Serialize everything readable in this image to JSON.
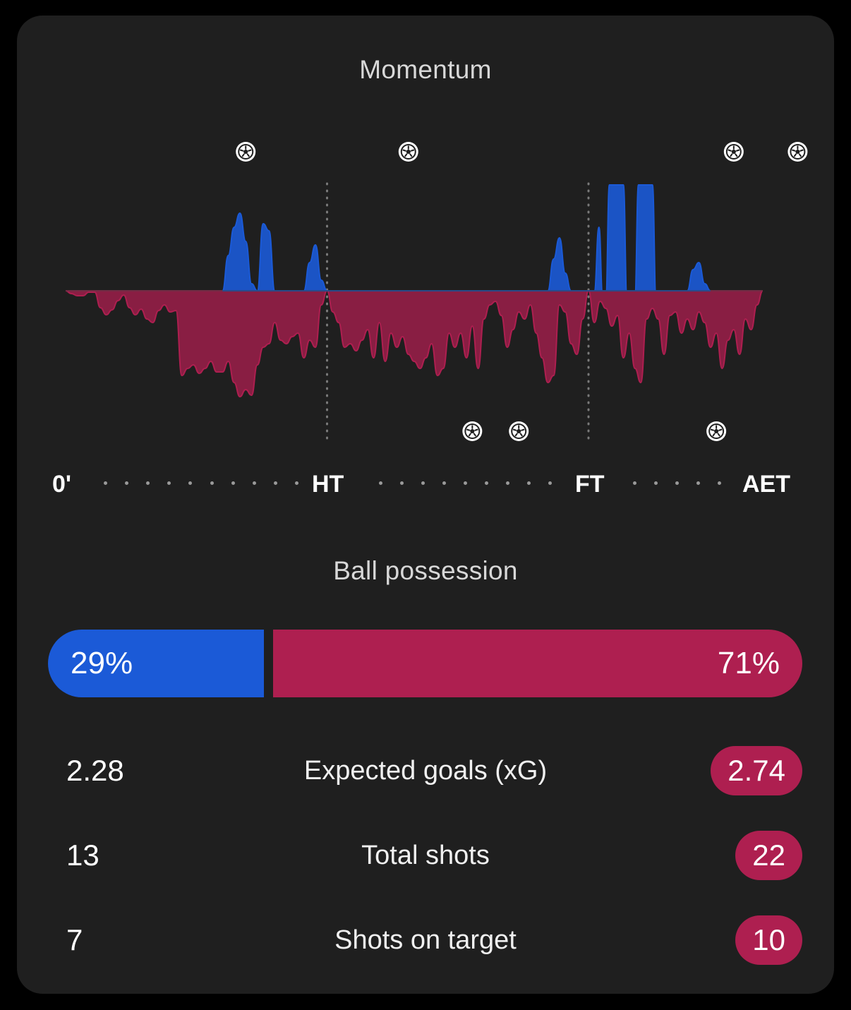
{
  "momentum": {
    "title": "Momentum",
    "timeline_labels": [
      "0'",
      "HT",
      "FT",
      "AET"
    ],
    "home_color": "#1b5ad7",
    "away_color": "#ae1f50",
    "home_goal_minutes": [
      31,
      59,
      115,
      126
    ],
    "away_goal_minutes": [
      70,
      78,
      112
    ],
    "goal_icon": "soccer-ball-icon",
    "periods": {
      "half_time": 45,
      "full_time": 90,
      "extra_time_end": 120
    },
    "series": [
      [
        0,
        0
      ],
      [
        1,
        -4
      ],
      [
        2,
        -7
      ],
      [
        3,
        -7
      ],
      [
        4,
        -2
      ],
      [
        5,
        -2
      ],
      [
        6,
        -24
      ],
      [
        7,
        -34
      ],
      [
        8,
        -27
      ],
      [
        9,
        -14
      ],
      [
        10,
        -6
      ],
      [
        11,
        -24
      ],
      [
        12,
        -34
      ],
      [
        13,
        -26
      ],
      [
        14,
        -40
      ],
      [
        15,
        -45
      ],
      [
        16,
        -28
      ],
      [
        17,
        -20
      ],
      [
        18,
        -30
      ],
      [
        19,
        -28
      ],
      [
        20,
        -120
      ],
      [
        21,
        -110
      ],
      [
        22,
        -105
      ],
      [
        23,
        -117
      ],
      [
        24,
        -110
      ],
      [
        25,
        -100
      ],
      [
        26,
        -115
      ],
      [
        27,
        -115
      ],
      [
        28,
        -100
      ],
      [
        29,
        -130
      ],
      [
        30,
        -150
      ],
      [
        31,
        -140
      ],
      [
        32,
        -148
      ],
      [
        33,
        -105
      ],
      [
        34,
        -80
      ],
      [
        35,
        -75
      ],
      [
        36,
        -45
      ],
      [
        37,
        -70
      ],
      [
        38,
        -75
      ],
      [
        39,
        -65
      ],
      [
        40,
        -60
      ],
      [
        41,
        -95
      ],
      [
        42,
        -70
      ],
      [
        43,
        -80
      ],
      [
        44,
        -20
      ],
      [
        45,
        0
      ],
      [
        46,
        -30
      ],
      [
        47,
        -45
      ],
      [
        48,
        -80
      ],
      [
        49,
        -75
      ],
      [
        50,
        -85
      ],
      [
        51,
        -70
      ],
      [
        52,
        -55
      ],
      [
        53,
        -95
      ],
      [
        54,
        -45
      ],
      [
        55,
        -100
      ],
      [
        56,
        -60
      ],
      [
        57,
        -80
      ],
      [
        58,
        -65
      ],
      [
        59,
        -90
      ],
      [
        60,
        -100
      ],
      [
        61,
        -110
      ],
      [
        62,
        -95
      ],
      [
        63,
        -75
      ],
      [
        64,
        -120
      ],
      [
        65,
        -110
      ],
      [
        66,
        -60
      ],
      [
        67,
        -80
      ],
      [
        68,
        -60
      ],
      [
        69,
        -95
      ],
      [
        70,
        -50
      ],
      [
        71,
        -110
      ],
      [
        72,
        -40
      ],
      [
        73,
        -20
      ],
      [
        74,
        -15
      ],
      [
        75,
        -35
      ],
      [
        76,
        -80
      ],
      [
        77,
        -55
      ],
      [
        78,
        -30
      ],
      [
        79,
        -40
      ],
      [
        80,
        -20
      ],
      [
        81,
        -60
      ],
      [
        82,
        -95
      ],
      [
        83,
        -130
      ],
      [
        84,
        -120
      ],
      [
        85,
        -20
      ],
      [
        86,
        -30
      ],
      [
        87,
        -75
      ],
      [
        88,
        -90
      ],
      [
        89,
        -40
      ],
      [
        90,
        0
      ],
      [
        91,
        -45
      ],
      [
        92,
        -15
      ],
      [
        93,
        -25
      ],
      [
        94,
        -50
      ],
      [
        95,
        -35
      ],
      [
        96,
        -95
      ],
      [
        97,
        -60
      ],
      [
        98,
        -110
      ],
      [
        99,
        -130
      ],
      [
        100,
        -40
      ],
      [
        101,
        -25
      ],
      [
        102,
        -40
      ],
      [
        103,
        -90
      ],
      [
        104,
        -35
      ],
      [
        105,
        -30
      ],
      [
        106,
        -60
      ],
      [
        107,
        -40
      ],
      [
        108,
        -55
      ],
      [
        109,
        -30
      ],
      [
        110,
        -45
      ],
      [
        111,
        -80
      ],
      [
        112,
        -60
      ],
      [
        113,
        -110
      ],
      [
        114,
        -70
      ],
      [
        115,
        -55
      ],
      [
        116,
        -90
      ],
      [
        117,
        -40
      ],
      [
        118,
        -55
      ],
      [
        119,
        -20
      ],
      [
        120,
        0
      ]
    ],
    "home_peaks": [
      [
        27,
        0
      ],
      [
        28,
        50
      ],
      [
        29,
        90
      ],
      [
        30,
        110
      ],
      [
        31,
        70
      ],
      [
        32,
        10
      ],
      [
        33,
        0
      ],
      [
        34,
        95
      ],
      [
        35,
        85
      ],
      [
        36,
        0
      ],
      [
        41,
        0
      ],
      [
        42,
        40
      ],
      [
        43,
        65
      ],
      [
        44,
        15
      ],
      [
        45,
        0
      ],
      [
        83,
        0
      ],
      [
        84,
        45
      ],
      [
        85,
        75
      ],
      [
        86,
        25
      ],
      [
        87,
        0
      ],
      [
        91,
        0
      ],
      [
        91.8,
        90
      ],
      [
        92.4,
        0
      ],
      [
        93,
        0
      ],
      [
        93.6,
        150
      ],
      [
        96,
        150
      ],
      [
        96.6,
        0
      ],
      [
        98,
        0
      ],
      [
        98.6,
        150
      ],
      [
        101,
        150
      ],
      [
        101.6,
        0
      ],
      [
        107,
        0
      ],
      [
        108,
        30
      ],
      [
        109,
        40
      ],
      [
        110,
        10
      ],
      [
        111,
        0
      ]
    ]
  },
  "possession": {
    "title": "Ball possession",
    "home_pct": 29,
    "away_pct": 71,
    "home_label": "29%",
    "away_label": "71%"
  },
  "stats": [
    {
      "home": "2.28",
      "label": "Expected goals (xG)",
      "away": "2.74"
    },
    {
      "home": "13",
      "label": "Total shots",
      "away": "22"
    },
    {
      "home": "7",
      "label": "Shots on target",
      "away": "10"
    }
  ]
}
